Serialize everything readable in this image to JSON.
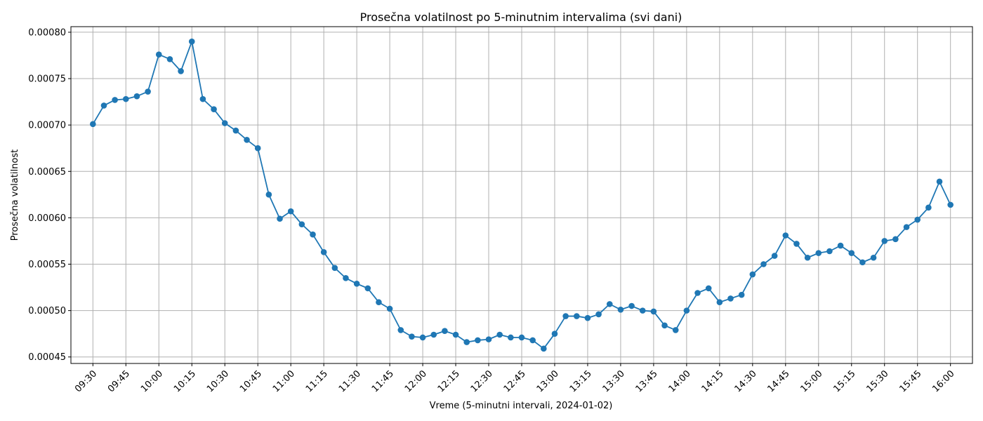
{
  "chart_data": {
    "type": "line",
    "title": "Prosečna volatilnost po 5-minutnim intervalima (svi dani)",
    "xlabel": "Vreme (5-minutni intervali, 2024-01-02)",
    "ylabel": "Prosečna volatilnost",
    "grid": true,
    "x_tick_labels": [
      "09:30",
      "09:45",
      "10:00",
      "10:15",
      "10:30",
      "10:45",
      "11:00",
      "11:15",
      "11:30",
      "11:45",
      "12:00",
      "12:15",
      "12:30",
      "12:45",
      "13:00",
      "13:15",
      "13:30",
      "13:45",
      "14:00",
      "14:15",
      "14:30",
      "14:45",
      "15:00",
      "15:15",
      "15:30",
      "15:45",
      "16:00"
    ],
    "y_ticks": [
      0.00045,
      0.0005,
      0.00055,
      0.0006,
      0.00065,
      0.0007,
      0.00075,
      0.0008
    ],
    "y_tick_labels": [
      "0.00045",
      "0.00050",
      "0.00055",
      "0.00060",
      "0.00065",
      "0.00070",
      "0.00075",
      "0.00080"
    ],
    "ylim": [
      0.000443,
      0.000806
    ],
    "xlim": [
      "09:20:00",
      "16:10:00"
    ],
    "color": "#1f77b4",
    "x": [
      "09:30",
      "09:35",
      "09:40",
      "09:45",
      "09:50",
      "09:55",
      "10:00",
      "10:05",
      "10:10",
      "10:15",
      "10:20",
      "10:25",
      "10:30",
      "10:35",
      "10:40",
      "10:45",
      "10:50",
      "10:55",
      "11:00",
      "11:05",
      "11:10",
      "11:15",
      "11:20",
      "11:25",
      "11:30",
      "11:35",
      "11:40",
      "11:45",
      "11:50",
      "11:55",
      "12:00",
      "12:05",
      "12:10",
      "12:15",
      "12:20",
      "12:25",
      "12:30",
      "12:35",
      "12:40",
      "12:45",
      "12:50",
      "12:55",
      "13:00",
      "13:05",
      "13:10",
      "13:15",
      "13:20",
      "13:25",
      "13:30",
      "13:35",
      "13:40",
      "13:45",
      "13:50",
      "13:55",
      "14:00",
      "14:05",
      "14:10",
      "14:15",
      "14:20",
      "14:25",
      "14:30",
      "14:35",
      "14:40",
      "14:45",
      "14:50",
      "14:55",
      "15:00",
      "15:05",
      "15:10",
      "15:15",
      "15:20",
      "15:25",
      "15:30",
      "15:35",
      "15:40",
      "15:45",
      "15:50",
      "15:55",
      "16:00"
    ],
    "values": [
      0.000701,
      0.000721,
      0.000727,
      0.000728,
      0.000731,
      0.000736,
      0.000776,
      0.000771,
      0.000758,
      0.00079,
      0.000728,
      0.000717,
      0.000702,
      0.000694,
      0.000684,
      0.000675,
      0.000625,
      0.000599,
      0.000607,
      0.000593,
      0.000582,
      0.000563,
      0.000546,
      0.000535,
      0.000529,
      0.000524,
      0.000509,
      0.000502,
      0.000479,
      0.000472,
      0.000471,
      0.000474,
      0.000478,
      0.000474,
      0.000466,
      0.000468,
      0.000469,
      0.000474,
      0.000471,
      0.000471,
      0.000468,
      0.000459,
      0.000475,
      0.000494,
      0.000494,
      0.000492,
      0.000496,
      0.000507,
      0.000501,
      0.000505,
      0.0005,
      0.000499,
      0.000484,
      0.000479,
      0.0005,
      0.000519,
      0.000524,
      0.000509,
      0.000513,
      0.000517,
      0.000539,
      0.00055,
      0.000559,
      0.000581,
      0.000572,
      0.000557,
      0.000562,
      0.000564,
      0.00057,
      0.000562,
      0.000552,
      0.000557,
      0.000575,
      0.000577,
      0.00059,
      0.000598,
      0.000611,
      0.000639,
      0.000614
    ]
  }
}
